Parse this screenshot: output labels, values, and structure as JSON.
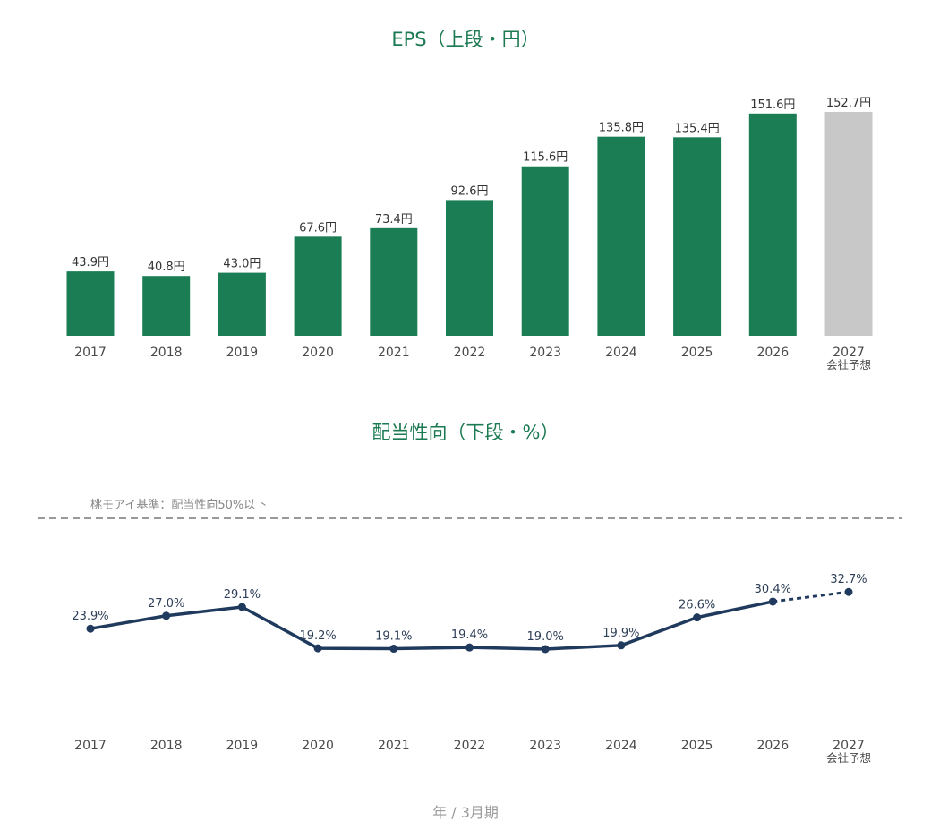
{
  "chart_data": [
    {
      "type": "bar",
      "title": "EPS（上段・円）",
      "categories": [
        "2017",
        "2018",
        "2019",
        "2020",
        "2021",
        "2022",
        "2023",
        "2024",
        "2025",
        "2026",
        "2027"
      ],
      "category_sublabels": [
        "",
        "",
        "",
        "",
        "",
        "",
        "",
        "",
        "",
        "",
        "会社予想"
      ],
      "values": [
        43.9,
        40.8,
        43.0,
        67.6,
        73.4,
        92.6,
        115.6,
        135.8,
        135.4,
        151.6,
        152.7
      ],
      "value_labels": [
        "43.9円",
        "40.8円",
        "43.0円",
        "67.6円",
        "73.4円",
        "92.6円",
        "115.6円",
        "135.8円",
        "135.4円",
        "151.6円",
        "152.7円"
      ],
      "forecast": [
        false,
        false,
        false,
        false,
        false,
        false,
        false,
        false,
        false,
        false,
        true
      ],
      "colors": {
        "actual": "#1b7d53",
        "forecast": "#c8c8c8",
        "forecast_label": "#7a7a7a"
      },
      "ylim": [
        0,
        152.7
      ]
    },
    {
      "type": "line",
      "title": "配当性向（下段・%）",
      "categories": [
        "2017",
        "2018",
        "2019",
        "2020",
        "2021",
        "2022",
        "2023",
        "2024",
        "2025",
        "2026",
        "2027"
      ],
      "category_sublabels": [
        "",
        "",
        "",
        "",
        "",
        "",
        "",
        "",
        "",
        "",
        "会社予想"
      ],
      "values": [
        23.9,
        27.0,
        29.1,
        19.2,
        19.1,
        19.4,
        19.0,
        19.9,
        26.6,
        30.4,
        32.7
      ],
      "value_labels": [
        "23.9%",
        "27.0%",
        "29.1%",
        "19.2%",
        "19.1%",
        "19.4%",
        "19.0%",
        "19.9%",
        "26.6%",
        "30.4%",
        "32.7%"
      ],
      "forecast_from_index": 9,
      "threshold": {
        "label": "桃モアイ基準：配当性向50%以下",
        "style": "dashed"
      },
      "colors": {
        "line": "#1f3a5c",
        "threshold": "#999999"
      }
    }
  ],
  "footer_label": "年 / 3月期"
}
